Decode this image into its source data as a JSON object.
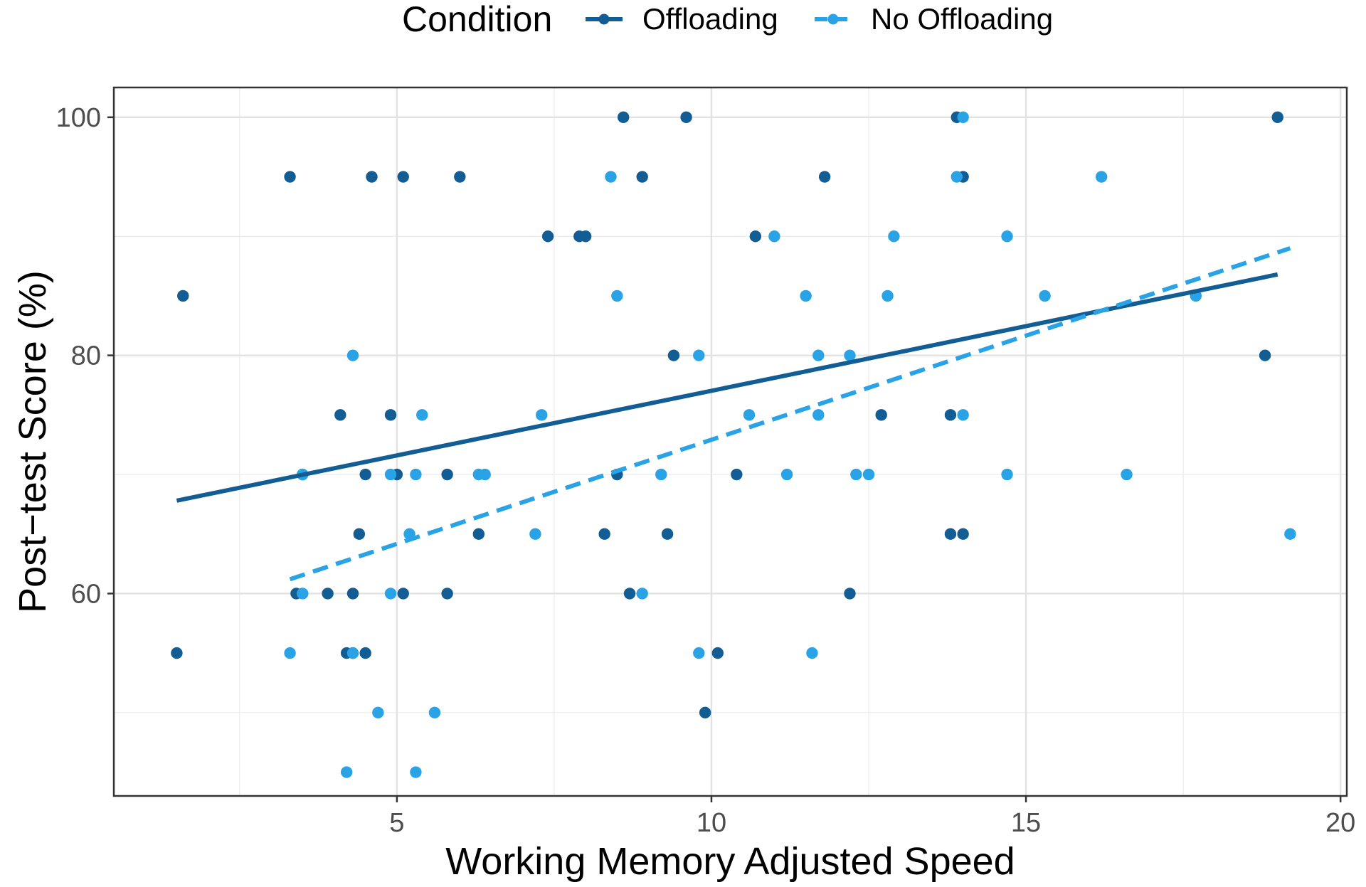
{
  "chart_data": {
    "type": "scatter",
    "xlabel": "Working Memory Adjusted Speed",
    "ylabel": "Post−test Score (%)",
    "xlim": [
      0.5,
      20.1
    ],
    "ylim": [
      43,
      102.5
    ],
    "x_ticks": [
      5,
      10,
      15,
      20
    ],
    "y_ticks": [
      60,
      80,
      100
    ],
    "x_minor_ticks": [
      2.5,
      7.5,
      12.5,
      17.5
    ],
    "y_minor_ticks": [
      50,
      70,
      90
    ],
    "grid": true,
    "legend": {
      "title": "Condition",
      "position": "top"
    },
    "series": [
      {
        "name": "Offloading",
        "color": "#135d95",
        "line_style": "solid",
        "trend": {
          "x": [
            1.5,
            19.0
          ],
          "y": [
            67.8,
            86.8
          ]
        },
        "points": [
          [
            8.6,
            100
          ],
          [
            9.6,
            100
          ],
          [
            13.9,
            100
          ],
          [
            19.0,
            100
          ],
          [
            3.3,
            95
          ],
          [
            4.6,
            95
          ],
          [
            5.1,
            95
          ],
          [
            6.0,
            95
          ],
          [
            8.9,
            95
          ],
          [
            11.8,
            95
          ],
          [
            14.0,
            95
          ],
          [
            7.4,
            90
          ],
          [
            7.9,
            90
          ],
          [
            8.0,
            90
          ],
          [
            10.7,
            90
          ],
          [
            1.6,
            85
          ],
          [
            9.4,
            80
          ],
          [
            18.8,
            80
          ],
          [
            4.1,
            75
          ],
          [
            4.9,
            75
          ],
          [
            12.7,
            75
          ],
          [
            13.8,
            75
          ],
          [
            3.5,
            70
          ],
          [
            4.5,
            70
          ],
          [
            5.0,
            70
          ],
          [
            5.8,
            70
          ],
          [
            8.5,
            70
          ],
          [
            10.4,
            70
          ],
          [
            4.4,
            65
          ],
          [
            6.3,
            65
          ],
          [
            8.3,
            65
          ],
          [
            9.3,
            65
          ],
          [
            13.8,
            65
          ],
          [
            14.0,
            65
          ],
          [
            3.4,
            60
          ],
          [
            3.9,
            60
          ],
          [
            4.3,
            60
          ],
          [
            5.1,
            60
          ],
          [
            5.8,
            60
          ],
          [
            8.7,
            60
          ],
          [
            12.2,
            60
          ],
          [
            1.5,
            55
          ],
          [
            4.2,
            55
          ],
          [
            4.3,
            55
          ],
          [
            4.5,
            55
          ],
          [
            10.1,
            55
          ],
          [
            9.9,
            50
          ]
        ]
      },
      {
        "name": "No Offloading",
        "color": "#29a3e6",
        "line_style": "dashed",
        "trend": {
          "x": [
            3.3,
            19.2
          ],
          "y": [
            61.2,
            89.0
          ]
        },
        "points": [
          [
            14.0,
            100
          ],
          [
            8.4,
            95
          ],
          [
            13.9,
            95
          ],
          [
            16.2,
            95
          ],
          [
            11.0,
            90
          ],
          [
            12.9,
            90
          ],
          [
            14.7,
            90
          ],
          [
            8.5,
            85
          ],
          [
            11.5,
            85
          ],
          [
            12.8,
            85
          ],
          [
            15.3,
            85
          ],
          [
            17.7,
            85
          ],
          [
            4.3,
            80
          ],
          [
            9.8,
            80
          ],
          [
            11.7,
            80
          ],
          [
            12.2,
            80
          ],
          [
            5.4,
            75
          ],
          [
            7.3,
            75
          ],
          [
            10.6,
            75
          ],
          [
            11.7,
            75
          ],
          [
            14.0,
            75
          ],
          [
            3.5,
            70
          ],
          [
            4.9,
            70
          ],
          [
            5.3,
            70
          ],
          [
            6.3,
            70
          ],
          [
            6.4,
            70
          ],
          [
            9.2,
            70
          ],
          [
            11.2,
            70
          ],
          [
            12.3,
            70
          ],
          [
            12.5,
            70
          ],
          [
            14.7,
            70
          ],
          [
            16.6,
            70
          ],
          [
            5.2,
            65
          ],
          [
            7.2,
            65
          ],
          [
            19.2,
            65
          ],
          [
            3.5,
            60
          ],
          [
            4.9,
            60
          ],
          [
            8.9,
            60
          ],
          [
            3.3,
            55
          ],
          [
            4.3,
            55
          ],
          [
            9.8,
            55
          ],
          [
            11.6,
            55
          ],
          [
            4.7,
            50
          ],
          [
            5.6,
            50
          ],
          [
            4.2,
            45
          ],
          [
            5.3,
            45
          ]
        ]
      }
    ]
  }
}
